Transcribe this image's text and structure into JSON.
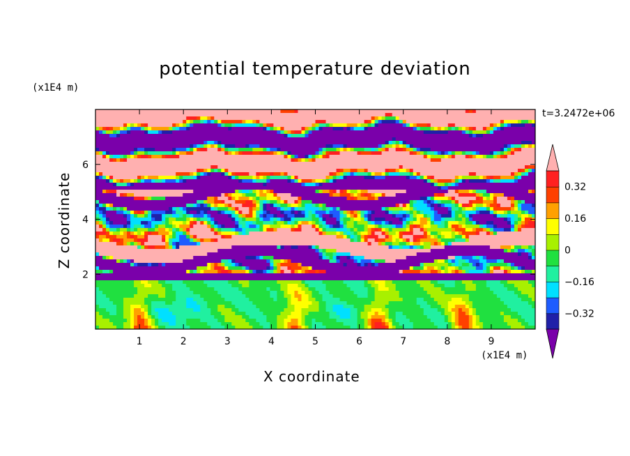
{
  "chart_data": {
    "type": "heatmap",
    "title": "potential temperature deviation",
    "xlabel": "X coordinate",
    "ylabel": "Z coordinate",
    "x_unit": "(x1E4 m)",
    "y_unit": "(x1E4 m)",
    "time_label": "t=3.2472e+06",
    "xlim": [
      0,
      10
    ],
    "ylim": [
      0,
      8
    ],
    "x_ticks": [
      "1",
      "2",
      "3",
      "4",
      "5",
      "6",
      "7",
      "8",
      "9"
    ],
    "y_ticks": [
      "2",
      "4",
      "6"
    ],
    "colorbar": {
      "levels": [
        -0.4,
        -0.32,
        -0.24,
        -0.16,
        -0.08,
        0,
        0.08,
        0.16,
        0.24,
        0.32,
        0.4
      ],
      "tick_labels": [
        "0.32",
        "0.16",
        "0",
        "-0.16",
        "-0.32"
      ],
      "tick_values": [
        0.32,
        0.16,
        0,
        -0.16,
        -0.32
      ],
      "colors_low_to_high": [
        "#7a00aa",
        "#2020a8",
        "#1e5cff",
        "#00e0ff",
        "#20f0a0",
        "#20e040",
        "#a8f000",
        "#ffff00",
        "#ffa000",
        "#ff4000",
        "#ff2020",
        "#ffb0b0"
      ],
      "under_color": "#7a00aa",
      "over_color": "#ffb0b0"
    },
    "grid": false
  }
}
